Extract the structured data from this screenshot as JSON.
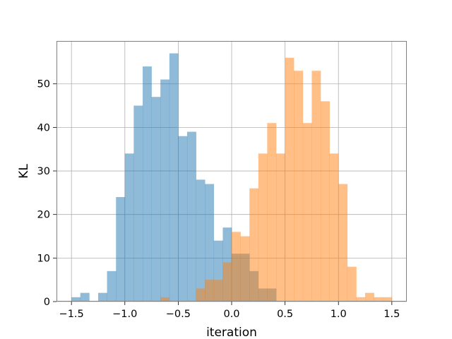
{
  "chart_data": {
    "type": "bar",
    "title": "",
    "xlabel": "iteration",
    "ylabel": "KL",
    "xlim": [
      -1.64,
      1.64
    ],
    "ylim": [
      0,
      59.85
    ],
    "grid": true,
    "legend": "none",
    "x_ticks": [
      -1.5,
      -1.0,
      -0.5,
      0.0,
      0.5,
      1.0,
      1.5
    ],
    "x_tick_labels": [
      "−1.5",
      "−1.0",
      "−0.5",
      "0.0",
      "0.5",
      "1.0",
      "1.5"
    ],
    "y_ticks": [
      0,
      10,
      20,
      30,
      40,
      50
    ],
    "y_tick_labels": [
      "0",
      "10",
      "20",
      "30",
      "40",
      "50"
    ],
    "bin_edges": [
      -1.5,
      -1.417,
      -1.333,
      -1.25,
      -1.167,
      -1.083,
      -1.0,
      -0.917,
      -0.833,
      -0.75,
      -0.667,
      -0.583,
      -0.5,
      -0.417,
      -0.333,
      -0.25,
      -0.167,
      -0.083,
      0.0,
      0.083,
      0.167,
      0.25,
      0.333,
      0.417,
      0.5,
      0.583,
      0.667,
      0.75,
      0.833,
      0.917,
      1.0,
      1.083,
      1.167,
      1.25,
      1.333,
      1.417,
      1.5
    ],
    "series": [
      {
        "color": "#1f77b4",
        "opacity": 0.5,
        "values": [
          1,
          2,
          0,
          2,
          7,
          24,
          34,
          45,
          54,
          47,
          51,
          57,
          38,
          39,
          28,
          27,
          14,
          17,
          11,
          11,
          7,
          3,
          3,
          0,
          0,
          0,
          0,
          0,
          0,
          0,
          0,
          0,
          0,
          0,
          0,
          0
        ]
      },
      {
        "color": "#ff7f0e",
        "opacity": 0.5,
        "values": [
          0,
          0,
          0,
          0,
          0,
          0,
          0,
          0,
          0,
          0,
          1,
          0,
          0,
          0,
          3,
          5,
          5,
          9,
          16,
          15,
          26,
          34,
          41,
          34,
          56,
          53,
          41,
          53,
          46,
          34,
          27,
          8,
          1,
          2,
          1,
          1
        ]
      }
    ]
  }
}
